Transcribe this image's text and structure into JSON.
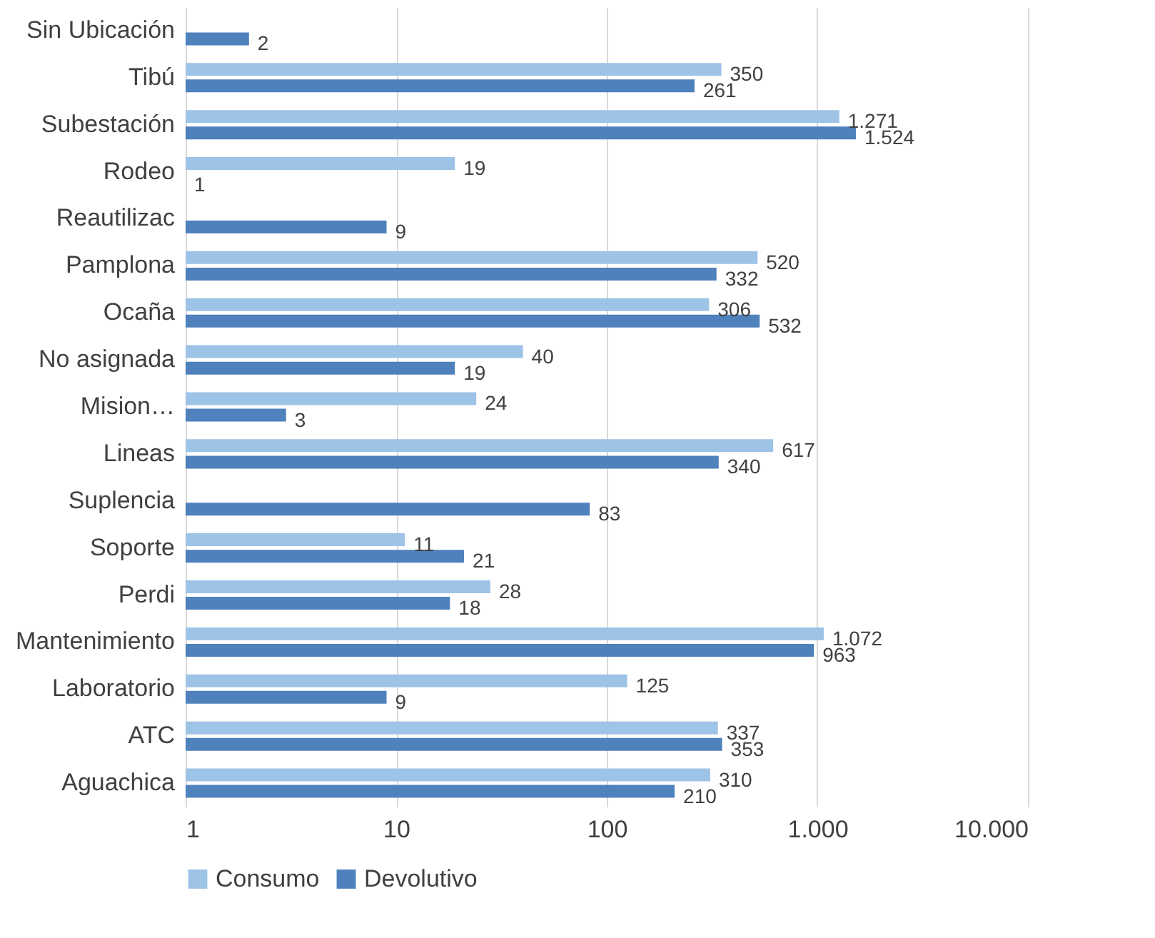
{
  "chart_data": {
    "type": "bar",
    "orientation": "horizontal",
    "log": "x",
    "categories": [
      "Sin Ubicación",
      "Tibú",
      "Subestación",
      "Rodeo",
      "Reautilizac",
      "Pamplona",
      "Ocaña",
      "No asignada",
      "Mision…",
      "Lineas",
      "Suplencia",
      "Soporte",
      "Perdi",
      "Mantenimiento",
      "Laboratorio",
      "ATC",
      "Aguachica"
    ],
    "series": [
      {
        "name": "Consumo",
        "color": "#9dc3e6",
        "values": [
          null,
          350,
          1271,
          19,
          null,
          520,
          306,
          40,
          24,
          617,
          null,
          11,
          28,
          1072,
          125,
          337,
          310
        ],
        "value_labels": [
          null,
          "350",
          "1.271",
          "19",
          null,
          "520",
          "306",
          "40",
          "24",
          "617",
          null,
          "11",
          "28",
          "1.072",
          "125",
          "337",
          "310"
        ]
      },
      {
        "name": "Devolutivo",
        "color": "#4f81bd",
        "values": [
          2,
          261,
          1524,
          1,
          9,
          332,
          532,
          19,
          3,
          340,
          83,
          21,
          18,
          963,
          9,
          353,
          210
        ],
        "value_labels": [
          "2",
          "261",
          "1.524",
          "1",
          "9",
          "332",
          "532",
          "19",
          "3",
          "340",
          "83",
          "21",
          "18",
          "963",
          "9",
          "353",
          "210"
        ]
      }
    ],
    "xlim": [
      1,
      10000
    ],
    "xticks": [
      1,
      10,
      100,
      {
        "value": 1000,
        "label": "1.000"
      },
      {
        "value": 10000,
        "label": "10.000"
      }
    ],
    "grid": "x",
    "legend": "bottom"
  }
}
